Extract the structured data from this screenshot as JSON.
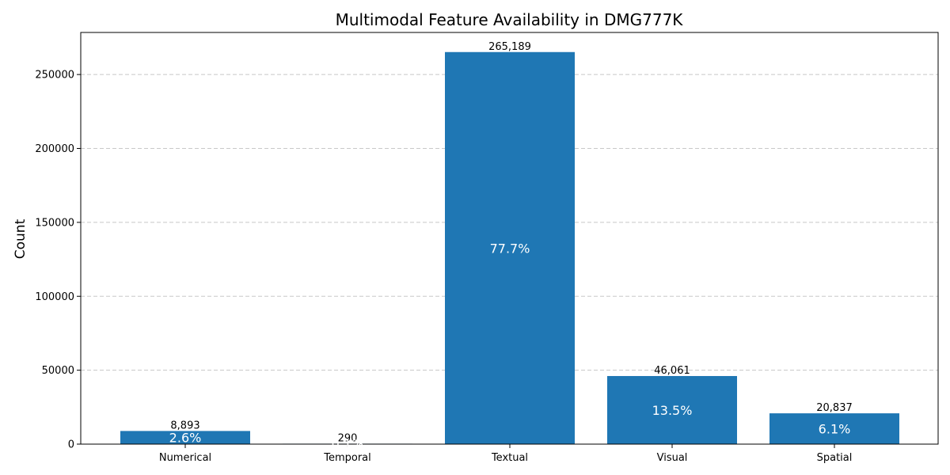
{
  "chart_data": {
    "type": "bar",
    "title": "Multimodal Feature Availability in DMG777K",
    "xlabel": "",
    "ylabel": "Count",
    "categories": [
      "Numerical",
      "Temporal",
      "Textual",
      "Visual",
      "Spatial"
    ],
    "values": [
      8893,
      290,
      265189,
      46061,
      20837
    ],
    "value_labels": [
      "8,893",
      "290",
      "265,189",
      "46,061",
      "20,837"
    ],
    "percent_labels": [
      "2.6%",
      "0.1%",
      "77.7%",
      "13.5%",
      "6.1%"
    ],
    "ylim": [
      0,
      278449
    ],
    "yticks": [
      0,
      50000,
      100000,
      150000,
      200000,
      250000
    ],
    "ytick_labels": [
      "0",
      "50000",
      "100000",
      "150000",
      "200000",
      "250000"
    ],
    "grid": "y-dashed",
    "bar_color": "#1f77b4",
    "grid_color": "#c8c8c8"
  }
}
